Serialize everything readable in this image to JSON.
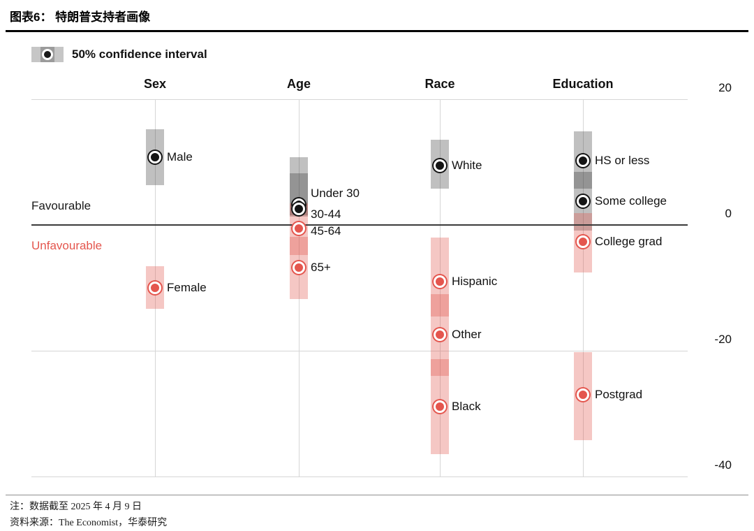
{
  "header": {
    "title": "图表6：  特朗普支持者画像"
  },
  "legend": {
    "label": "50% confidence interval"
  },
  "axis_labels": {
    "favourable": "Favourable",
    "unfavourable": "Unfavourable"
  },
  "notes": {
    "note": "注：数据截至 2025 年 4 月 9 日",
    "source": "资料来源：The Economist，华泰研究"
  },
  "chart_data": {
    "type": "scatter",
    "title": "特朗普支持者画像 (net favourability of Trump supporters by group)",
    "legend": "50% confidence interval",
    "legend_position": "top-left",
    "grid": true,
    "ylim": [
      -40,
      20
    ],
    "yticks": [
      20,
      0,
      -20,
      -40
    ],
    "zero_labels": {
      "above": "Favourable",
      "below": "Unfavourable"
    },
    "colors": {
      "favourable_dot": "#141414",
      "unfavourable_dot": "#e4564e",
      "ci_favourable": "#b5b5b5",
      "ci_unfavourable": "#f2b6b1"
    },
    "groups": [
      {
        "name": "Sex",
        "points": [
          {
            "label": "Male",
            "value": 10.8,
            "ci": [
              6.3,
              15.2
            ],
            "color": "dark"
          },
          {
            "label": "Female",
            "value": -10.0,
            "ci": [
              -13.3,
              -6.6
            ],
            "color": "red"
          }
        ]
      },
      {
        "name": "Age",
        "points": [
          {
            "label": "Under 30",
            "value": 3.2,
            "ci": [
              1.5,
              10.8
            ],
            "color": "dark",
            "label_offset_y": -16
          },
          {
            "label": "30-44",
            "value": 2.6,
            "ci": [
              1.3,
              8.2
            ],
            "color": "dark",
            "label_offset_y": 8
          },
          {
            "label": "45-64",
            "value": -0.6,
            "ci": [
              -4.8,
              3.4
            ],
            "color": "red",
            "label_offset_y": 4
          },
          {
            "label": "65+",
            "value": -6.8,
            "ci": [
              -11.8,
              -1.9
            ],
            "color": "red"
          }
        ]
      },
      {
        "name": "Race",
        "points": [
          {
            "label": "White",
            "value": 9.4,
            "ci": [
              5.8,
              13.6
            ],
            "color": "dark"
          },
          {
            "label": "Hispanic",
            "value": -9.0,
            "ci": [
              -14.5,
              -2.0
            ],
            "color": "red"
          },
          {
            "label": "Other",
            "value": -17.4,
            "ci": [
              -24.0,
              -11.0
            ],
            "color": "red"
          },
          {
            "label": "Black",
            "value": -28.9,
            "ci": [
              -36.4,
              -21.3
            ],
            "color": "red"
          }
        ]
      },
      {
        "name": "Education",
        "points": [
          {
            "label": "HS or less",
            "value": 10.2,
            "ci": [
              5.8,
              14.9
            ],
            "color": "dark"
          },
          {
            "label": "Some college",
            "value": 3.8,
            "ci": [
              -0.9,
              8.4
            ],
            "color": "dark"
          },
          {
            "label": "College grad",
            "value": -2.7,
            "ci": [
              -7.6,
              1.9
            ],
            "color": "red"
          },
          {
            "label": "Postgrad",
            "value": -27.0,
            "ci": [
              -34.2,
              -20.2
            ],
            "color": "red"
          }
        ]
      }
    ]
  }
}
